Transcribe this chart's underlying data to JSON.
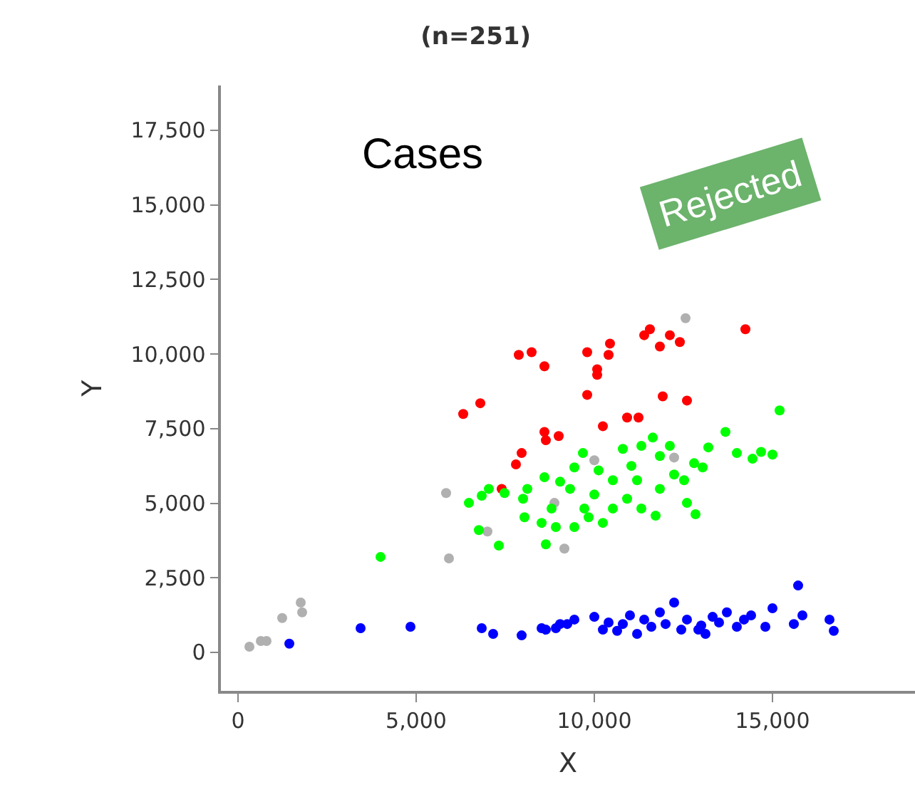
{
  "chart_data": {
    "type": "scatter",
    "title": "(n=251)",
    "xlabel": "X",
    "ylabel": "Y",
    "annotations": [
      "Cases",
      "Rejected"
    ],
    "xlim": [
      -480,
      19000
    ],
    "ylim": [
      -1290,
      19000
    ],
    "xticks": [
      {
        "value": 0,
        "label": "0"
      },
      {
        "value": 5000,
        "label": "5,000"
      },
      {
        "value": 10000,
        "label": "10,000"
      },
      {
        "value": 15000,
        "label": "15,000"
      }
    ],
    "yticks": [
      {
        "value": 0,
        "label": "0"
      },
      {
        "value": 2500,
        "label": "2,500"
      },
      {
        "value": 5000,
        "label": "5,000"
      },
      {
        "value": 7500,
        "label": "7,500"
      },
      {
        "value": 10000,
        "label": "10,000"
      },
      {
        "value": 12500,
        "label": "12,500"
      },
      {
        "value": 15000,
        "label": "15,000"
      },
      {
        "value": 17500,
        "label": "17,500"
      }
    ],
    "marker": "circle",
    "series": [
      {
        "color": "#b0b0b0",
        "x": [
          5840,
          8880,
          7000,
          5920,
          12560,
          10000,
          12240,
          9160,
          320,
          640,
          800,
          1240,
          1760,
          1800
        ],
        "values": [
          5340,
          5010,
          4050,
          3150,
          11200,
          6440,
          6530,
          3480,
          190,
          380,
          380,
          1150,
          1670,
          1340
        ]
      },
      {
        "color": "#ff0000",
        "x": [
          7880,
          8240,
          8600,
          6320,
          6800,
          8600,
          9000,
          8640,
          7960,
          7800,
          7400,
          9800,
          10440,
          10400,
          11400,
          11560,
          11840,
          12120,
          12400,
          14240,
          10080,
          10080,
          9800,
          11920,
          12600,
          10920,
          11240,
          10240
        ],
        "values": [
          9970,
          10060,
          9590,
          7990,
          8350,
          7390,
          7250,
          7110,
          6680,
          6300,
          5480,
          10060,
          10350,
          9970,
          10630,
          10830,
          10250,
          10630,
          10400,
          10830,
          9490,
          9300,
          8630,
          8580,
          8440,
          7870,
          7870,
          7580
        ]
      },
      {
        "color": "#00ff00",
        "x": [
          4000,
          6480,
          6840,
          7040,
          7480,
          6760,
          7320,
          8040,
          8000,
          8120,
          8600,
          8520,
          15200,
          13680,
          14000,
          14440,
          14680,
          15000,
          13200,
          11640,
          12120,
          11320,
          10800,
          9680,
          12800,
          12520,
          11840,
          11320,
          11720,
          12600,
          12840,
          10520,
          10000,
          9440,
          9040,
          9840,
          9440,
          8920,
          8640,
          11040,
          11200,
          10520,
          10240,
          11840,
          8800,
          13040,
          12240,
          10920,
          10120,
          9320,
          9720
        ],
        "values": [
          3200,
          5010,
          5250,
          5480,
          5340,
          4100,
          3580,
          4530,
          5150,
          5480,
          5870,
          4340,
          8110,
          7390,
          6680,
          6490,
          6720,
          6630,
          6870,
          7200,
          6920,
          6920,
          6820,
          6680,
          6340,
          5770,
          5480,
          4820,
          4580,
          5010,
          4630,
          5770,
          5290,
          6200,
          5720,
          4530,
          4200,
          4200,
          3620,
          6250,
          5770,
          4820,
          4340,
          6580,
          4820,
          6200,
          5960,
          5150,
          6100,
          5480,
          4820
        ]
      },
      {
        "color": "#0000ff",
        "x": [
          1440,
          3440,
          4840,
          6840,
          7160,
          7960,
          8520,
          8920,
          9240,
          8640,
          9040,
          9440,
          10000,
          10240,
          10640,
          11000,
          11200,
          11600,
          11840,
          12240,
          12440,
          12920,
          13120,
          13320,
          13720,
          14000,
          14400,
          14800,
          15000,
          15720,
          15840,
          15600,
          16600,
          16720,
          10400,
          10800,
          11400,
          12000,
          12600,
          13000,
          13500,
          14200
        ],
        "values": [
          290,
          810,
          860,
          810,
          620,
          570,
          810,
          810,
          950,
          760,
          950,
          1100,
          1190,
          760,
          720,
          1240,
          620,
          860,
          1340,
          1670,
          760,
          760,
          620,
          1190,
          1340,
          860,
          1240,
          860,
          1480,
          2240,
          1240,
          950,
          1100,
          720,
          1000,
          950,
          1100,
          950,
          1100,
          900,
          1000,
          1100
        ]
      }
    ]
  }
}
